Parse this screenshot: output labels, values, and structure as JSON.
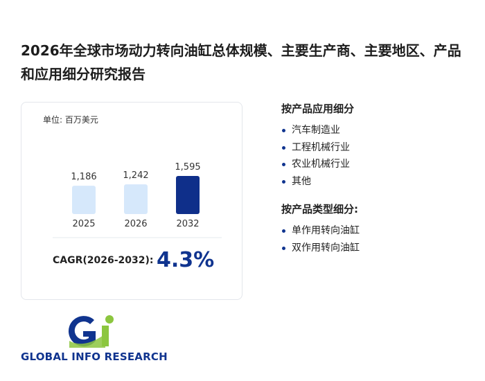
{
  "title": "2026年全球市场动力转向油缸总体规模、主要生产商、主要地区、产品和应用细分研究报告",
  "unit": "单位: 百万美元",
  "chart_data": {
    "type": "bar",
    "categories": [
      "2025",
      "2026",
      "2032"
    ],
    "values": [
      1186,
      1242,
      1595
    ],
    "value_labels": [
      "1,186",
      "1,242",
      "1,595"
    ],
    "colors": [
      "#d6e8fb",
      "#d6e8fb",
      "#0f2f8a"
    ]
  },
  "cagr": {
    "label": "CAGR(2026-2032):",
    "value": "4.3%"
  },
  "sections": [
    {
      "heading": "按产品应用细分",
      "items": [
        "汽车制造业",
        "工程机械行业",
        "农业机械行业",
        "其他"
      ]
    },
    {
      "heading": "按产品类型细分:",
      "items": [
        "单作用转向油缸",
        "双作用转向油缸"
      ]
    }
  ],
  "logo": "GLOBAL INFO RESEARCH"
}
